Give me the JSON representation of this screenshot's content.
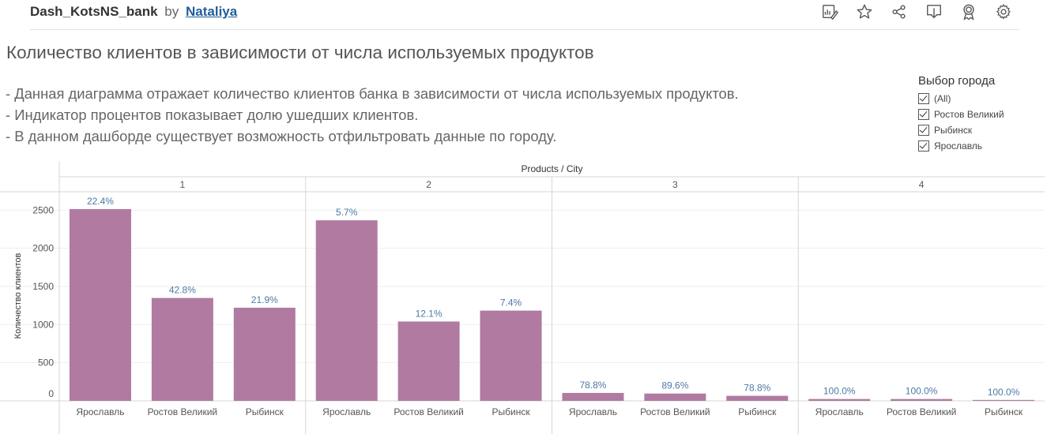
{
  "header": {
    "workbook_name": "Dash_KotsNS_bank",
    "by": "by",
    "author": "Nataliya"
  },
  "icons": [
    "edit-icon",
    "favorite-star-icon",
    "share-icon",
    "download-icon",
    "badge-icon",
    "settings-gear-icon"
  ],
  "dashboard": {
    "title": "Количество клиентов в зависимости от числа используемых продуктов",
    "description": [
      "- Данная диаграмма отражает количество клиентов банка в зависимости от числа используемых продуктов.",
      "- Индикатор процентов показывает долю ушедших клиентов.",
      "- В данном дашборде существует возможность отфильтровать данные по городу."
    ]
  },
  "filter": {
    "title": "Выбор города",
    "items": [
      {
        "label": "(All)",
        "checked": true
      },
      {
        "label": "Ростов Великий",
        "checked": true
      },
      {
        "label": "Рыбинск",
        "checked": true
      },
      {
        "label": "Ярославль",
        "checked": true
      }
    ]
  },
  "chart_data": {
    "type": "bar",
    "header_title": "Products / City",
    "ylabel": "Количество клиентов",
    "ylim": [
      0,
      2700
    ],
    "yticks": [
      0,
      500,
      1000,
      1500,
      2000,
      2500
    ],
    "bar_color": "#b07aa1",
    "label_color": "#4e79a7",
    "panes": [
      {
        "label": "1",
        "categories": [
          "Ярославль",
          "Ростов Великий",
          "Рыбинск"
        ],
        "values": [
          2514,
          1349,
          1221
        ],
        "labels": [
          "22.4%",
          "42.8%",
          "21.9%"
        ]
      },
      {
        "label": "2",
        "categories": [
          "Ярославль",
          "Ростов Великий",
          "Рыбинск"
        ],
        "values": [
          2367,
          1040,
          1183
        ],
        "labels": [
          "5.7%",
          "12.1%",
          "7.4%"
        ]
      },
      {
        "label": "3",
        "categories": [
          "Ярославль",
          "Ростов Великий",
          "Рыбинск"
        ],
        "values": [
          104,
          96,
          66
        ],
        "labels": [
          "78.8%",
          "89.6%",
          "78.8%"
        ]
      },
      {
        "label": "4",
        "categories": [
          "Ярославль",
          "Ростов Великий",
          "Рыбинск"
        ],
        "values": [
          24,
          24,
          12
        ],
        "labels": [
          "100.0%",
          "100.0%",
          "100.0%"
        ]
      }
    ]
  }
}
